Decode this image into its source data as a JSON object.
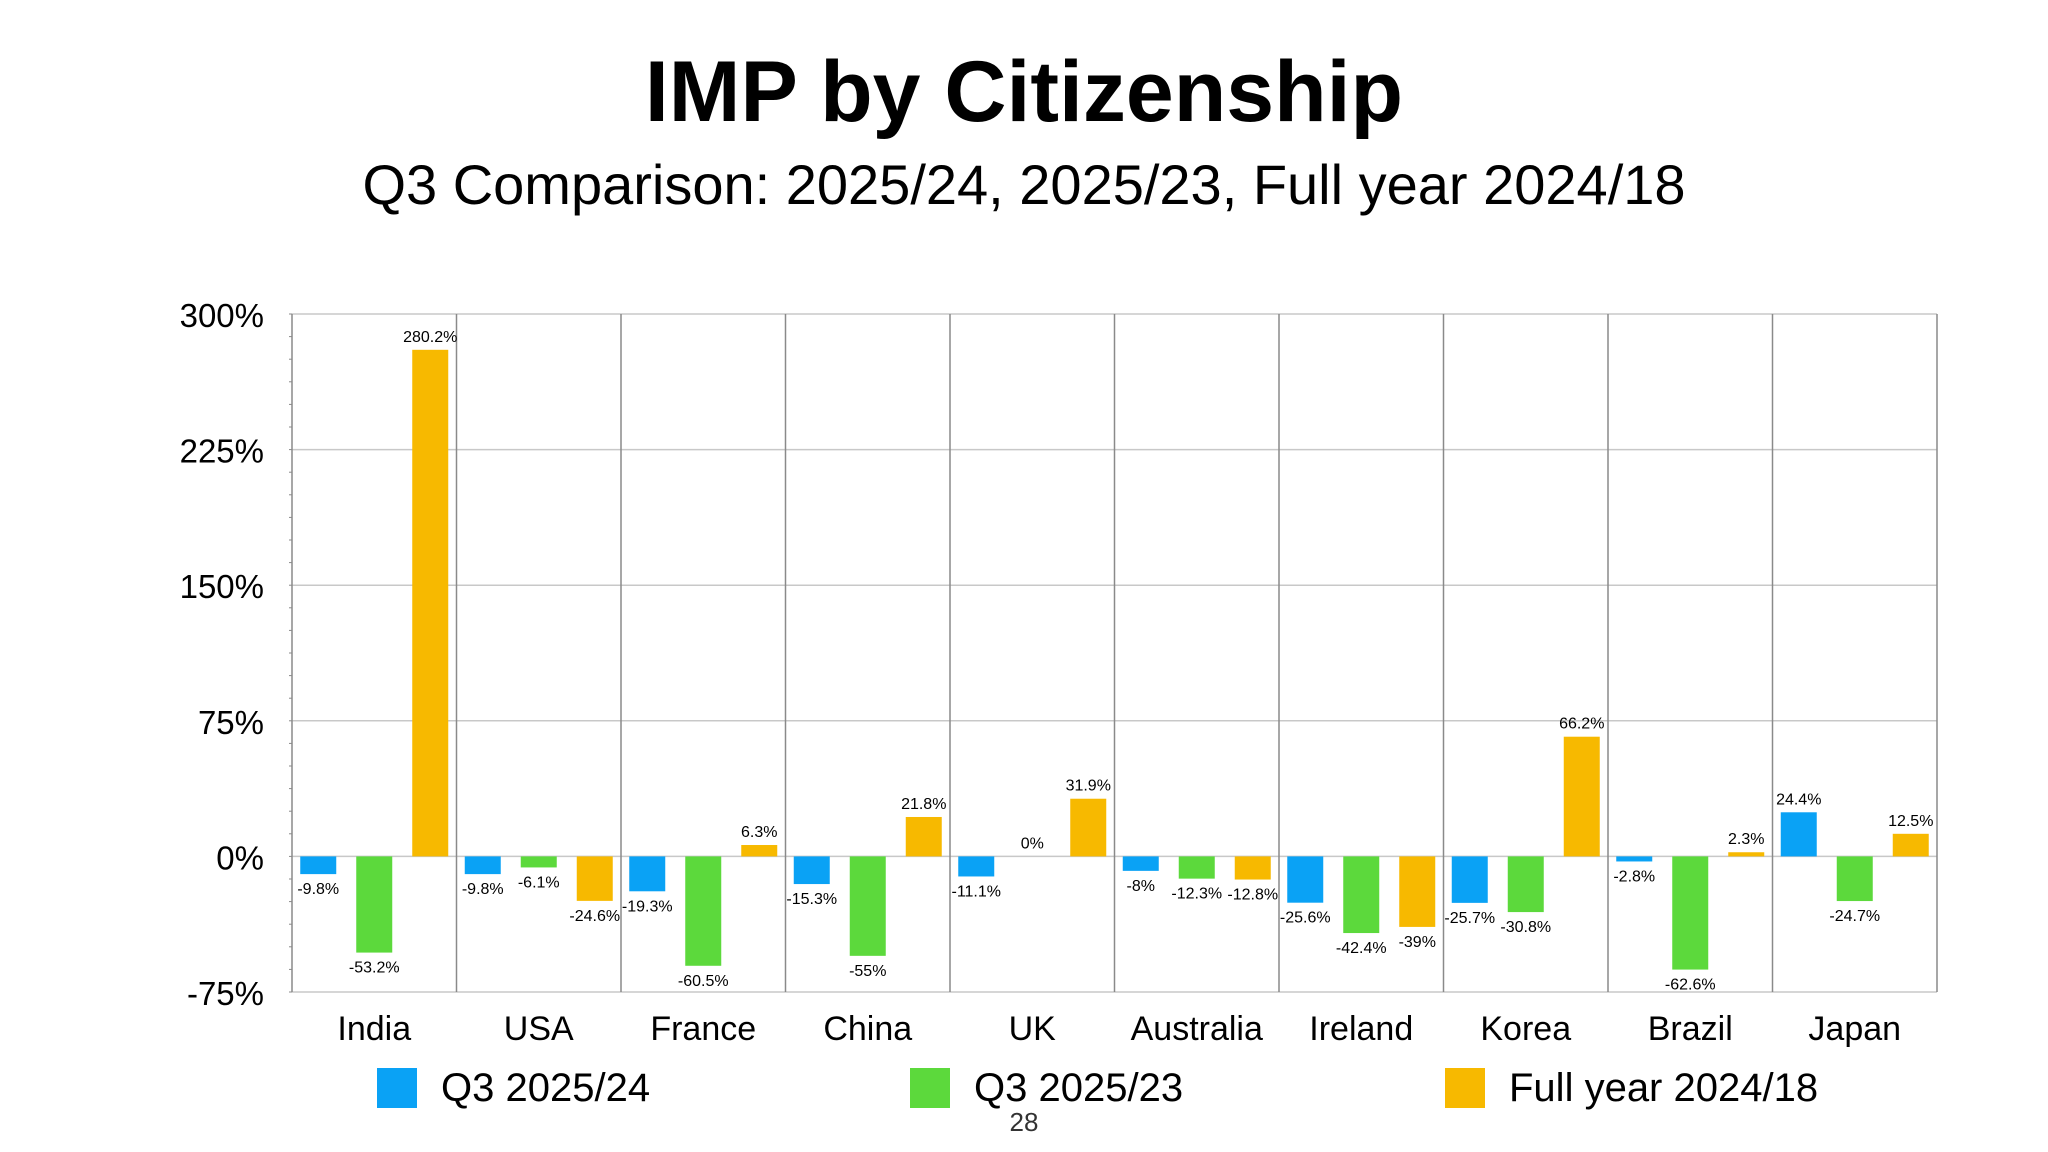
{
  "slide": {
    "title": "IMP by Citizenship",
    "subtitle": "Q3 Comparison: 2025/24, 2025/23, Full year 2024/18",
    "page_number": "28"
  },
  "colors": {
    "q3_2025_24": "#0aa2f5",
    "q3_2025_23": "#5cd93c",
    "full_year_2024_18": "#f7b900",
    "grid": "#c8c8c8",
    "divider": "#8a8a8a"
  },
  "chart_data": {
    "type": "bar",
    "title": "",
    "xlabel": "",
    "ylabel": "",
    "ylim": [
      -75,
      300
    ],
    "yticks": [
      -75,
      0,
      75,
      150,
      225,
      300
    ],
    "ytick_labels": [
      "-75%",
      "0%",
      "75%",
      "150%",
      "225%",
      "300%"
    ],
    "grid": true,
    "legend_position": "bottom",
    "categories": [
      "India",
      "USA",
      "France",
      "China",
      "UK",
      "Australia",
      "Ireland",
      "Korea",
      "Brazil",
      "Japan"
    ],
    "series": [
      {
        "name": "Q3 2025/24",
        "color": "#0aa2f5",
        "values": [
          -9.8,
          -9.8,
          -19.3,
          -15.3,
          -11.1,
          -8,
          -25.6,
          -25.7,
          -2.8,
          24.4
        ],
        "labels": [
          "-9.8%",
          "-9.8%",
          "-19.3%",
          "-15.3%",
          "-11.1%",
          "-8%",
          "-25.6%",
          "-25.7%",
          "-2.8%",
          "24.4%"
        ]
      },
      {
        "name": "Q3 2025/23",
        "color": "#5cd93c",
        "values": [
          -53.2,
          -6.1,
          -60.5,
          -55,
          0,
          -12.3,
          -42.4,
          -30.8,
          -62.6,
          -24.7
        ],
        "labels": [
          "-53.2%",
          "-6.1%",
          "-60.5%",
          "-55%",
          "0%",
          "-12.3%",
          "-42.4%",
          "-30.8%",
          "-62.6%",
          "-24.7%"
        ]
      },
      {
        "name": "Full year 2024/18",
        "color": "#f7b900",
        "values": [
          280.2,
          -24.6,
          6.3,
          21.8,
          31.9,
          -12.8,
          -39,
          66.2,
          2.3,
          12.5
        ],
        "labels": [
          "280.2%",
          "-24.6%",
          "6.3%",
          "21.8%",
          "31.9%",
          "-12.8%",
          "-39%",
          "66.2%",
          "2.3%",
          "12.5%"
        ]
      }
    ]
  }
}
